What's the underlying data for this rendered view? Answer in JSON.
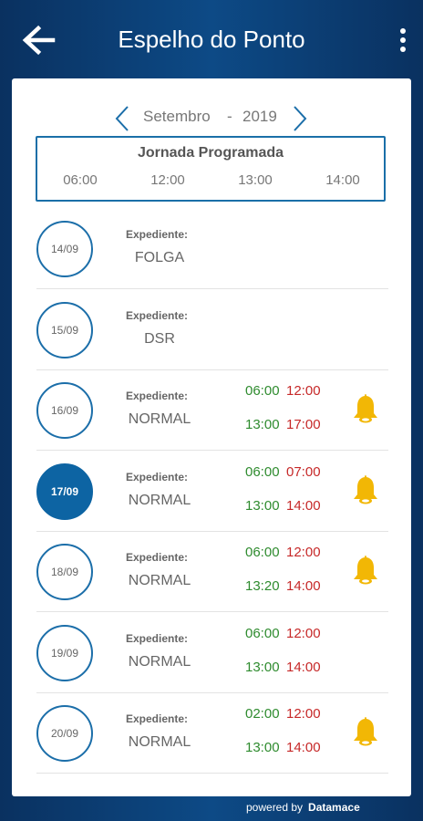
{
  "header": {
    "title": "Espelho do Ponto",
    "back_icon": "arrow-left-icon",
    "menu_icon": "more-vertical-icon"
  },
  "period": {
    "month": "Setembro",
    "separator": "-",
    "year": "2019"
  },
  "jornada": {
    "title": "Jornada Programada",
    "hours": [
      "06:00",
      "12:00",
      "13:00",
      "14:00"
    ]
  },
  "days": [
    {
      "date": "14/09",
      "label": "Expediente:",
      "type": "FOLGA",
      "active": false,
      "times": [],
      "alert": false
    },
    {
      "date": "15/09",
      "label": "Expediente:",
      "type": "DSR",
      "active": false,
      "times": [],
      "alert": false
    },
    {
      "date": "16/09",
      "label": "Expediente:",
      "type": "NORMAL",
      "active": false,
      "times": [
        [
          "06:00",
          "12:00"
        ],
        [
          "13:00",
          "17:00"
        ]
      ],
      "alert": true
    },
    {
      "date": "17/09",
      "label": "Expediente:",
      "type": "NORMAL",
      "active": true,
      "times": [
        [
          "06:00",
          "07:00"
        ],
        [
          "13:00",
          "14:00"
        ]
      ],
      "alert": true
    },
    {
      "date": "18/09",
      "label": "Expediente:",
      "type": "NORMAL",
      "active": false,
      "times": [
        [
          "06:00",
          "12:00"
        ],
        [
          "13:20",
          "14:00"
        ]
      ],
      "alert": true
    },
    {
      "date": "19/09",
      "label": "Expediente:",
      "type": "NORMAL",
      "active": false,
      "times": [
        [
          "06:00",
          "12:00"
        ],
        [
          "13:00",
          "14:00"
        ]
      ],
      "alert": false
    },
    {
      "date": "20/09",
      "label": "Expediente:",
      "type": "NORMAL",
      "active": false,
      "times": [
        [
          "02:00",
          "12:00"
        ],
        [
          "13:00",
          "14:00"
        ]
      ],
      "alert": true
    }
  ],
  "footer": {
    "powered": "powered by",
    "brand": "Datamace"
  },
  "colors": {
    "accent": "#0d64a3",
    "time_in": "#2e8b2e",
    "time_out": "#c62828",
    "bell": "#f2b705"
  }
}
